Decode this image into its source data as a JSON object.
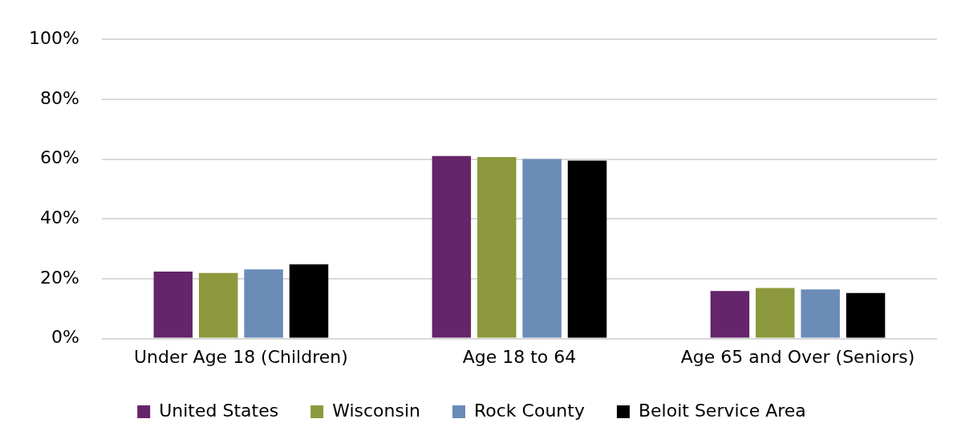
{
  "chart_data": {
    "type": "bar",
    "categories": [
      "Under Age 18 (Children)",
      "Age 18 to 64",
      "Age 65 and Over (Seniors)"
    ],
    "series": [
      {
        "name": "United States",
        "color": "#65256a",
        "values": [
          22.4,
          61.0,
          15.9
        ]
      },
      {
        "name": "Wisconsin",
        "color": "#8d993d",
        "values": [
          21.9,
          60.7,
          16.9
        ]
      },
      {
        "name": "Rock County",
        "color": "#6a8cb7",
        "values": [
          23.1,
          60.0,
          16.4
        ]
      },
      {
        "name": "Beloit Service Area",
        "color": "#000000",
        "values": [
          24.8,
          59.5,
          15.2
        ]
      }
    ],
    "ylim": [
      0,
      100
    ],
    "yticks": [
      {
        "value": 0,
        "label": "0%"
      },
      {
        "value": 20,
        "label": "20%"
      },
      {
        "value": 40,
        "label": "40%"
      },
      {
        "value": 60,
        "label": "60%"
      },
      {
        "value": 80,
        "label": "80%"
      },
      {
        "value": 100,
        "label": "100%"
      }
    ],
    "grid": "y",
    "legend": "bottom"
  }
}
